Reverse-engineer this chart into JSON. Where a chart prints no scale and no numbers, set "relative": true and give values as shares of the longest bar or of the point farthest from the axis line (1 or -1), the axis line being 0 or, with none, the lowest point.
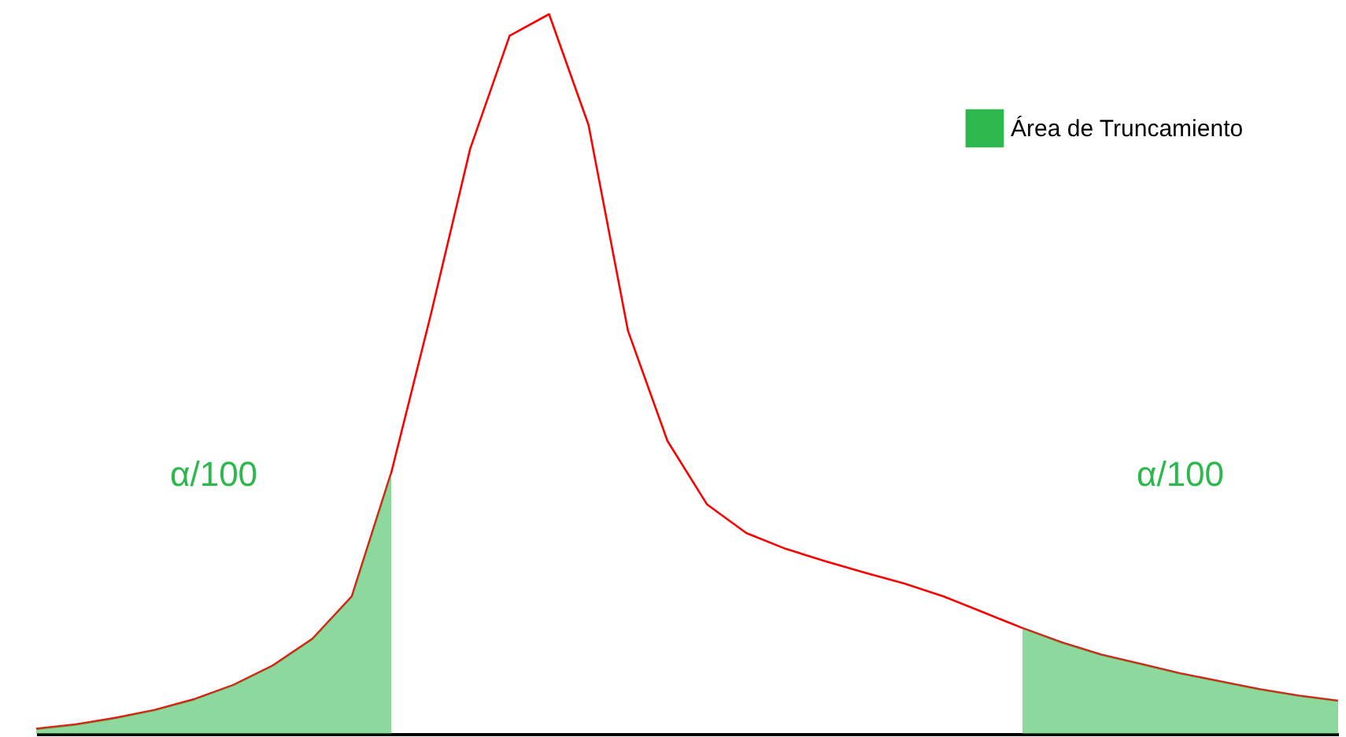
{
  "chart_data": {
    "type": "line",
    "relative": true,
    "categories": [
      null,
      null,
      null,
      null,
      null,
      null,
      null,
      null,
      null,
      null,
      null,
      null,
      null,
      null,
      null,
      null,
      null,
      null,
      null,
      null,
      null,
      null,
      null,
      null,
      null,
      null,
      null,
      null,
      null,
      null,
      null,
      null,
      null,
      null
    ],
    "series": [
      {
        "color": "#ff0000",
        "values": [
          0.007,
          0.013,
          0.022,
          0.033,
          0.048,
          0.068,
          0.095,
          0.132,
          0.191,
          0.363,
          0.582,
          0.813,
          0.97,
          1.0,
          0.846,
          0.56,
          0.407,
          0.319,
          0.279,
          0.257,
          0.24,
          0.224,
          0.209,
          0.191,
          0.169,
          0.147,
          0.127,
          0.11,
          0.097,
          0.084,
          0.073,
          0.062,
          0.053,
          0.046
        ]
      },
      {
        "type": "area",
        "name": "Área de Truncamiento",
        "color": "#2db84d",
        "values": [
          0.007,
          0.013,
          0.022,
          0.033,
          0.048,
          0.068,
          0.095,
          0.132,
          0.191,
          0.363,
          null,
          null,
          null,
          null,
          null,
          null,
          null,
          null,
          null,
          null,
          null,
          null,
          null,
          null,
          null,
          0.147,
          0.127,
          0.11,
          0.097,
          0.084,
          0.073,
          0.062,
          0.053,
          0.046
        ]
      }
    ],
    "annotations": [
      "α/100",
      "α/100"
    ],
    "legend": "top right",
    "grid": false
  }
}
